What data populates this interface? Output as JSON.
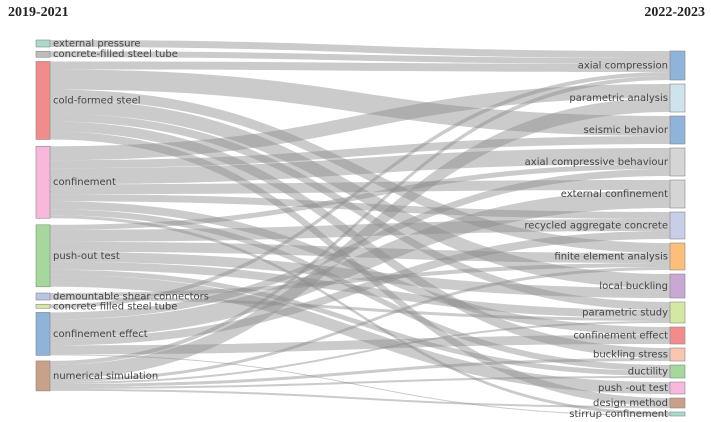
{
  "chart_data": {
    "type": "sankey",
    "left_title": "2019-2021",
    "right_title": "2022-2023",
    "left_nodes": [
      {
        "label": "external pressure",
        "color": "#a8dcc8"
      },
      {
        "label": "concrete-filled steel tube",
        "color": "#bdbdbd"
      },
      {
        "label": "cold-formed steel",
        "color": "#f28b8b"
      },
      {
        "label": "confinement",
        "color": "#f7b8dc"
      },
      {
        "label": "push-out test",
        "color": "#a6d89c"
      },
      {
        "label": "demountable shear connectors",
        "color": "#b8c4e4"
      },
      {
        "label": "concrete filled steel tube",
        "color": "#d8e8a8"
      },
      {
        "label": "confinement effect",
        "color": "#8fb4d9"
      },
      {
        "label": "numerical simulation",
        "color": "#c9a088"
      }
    ],
    "right_nodes": [
      {
        "label": "axial compression",
        "color": "#8fb4d9"
      },
      {
        "label": "parametric analysis",
        "color": "#cfe3ef"
      },
      {
        "label": "seismic behavior",
        "color": "#8fb4d9"
      },
      {
        "label": "axial compressive behaviour",
        "color": "#d5d5d5"
      },
      {
        "label": "external confinement",
        "color": "#d5d5d5"
      },
      {
        "label": "recycled aggregate concrete",
        "color": "#c8cde8"
      },
      {
        "label": "finite element analysis",
        "color": "#fbbf7a"
      },
      {
        "label": "local buckling",
        "color": "#c9a8d4"
      },
      {
        "label": "parametric study",
        "color": "#d4e8a4"
      },
      {
        "label": "confinement effect",
        "color": "#f28b8b"
      },
      {
        "label": "buckling stress",
        "color": "#fbc6b0"
      },
      {
        "label": "ductility",
        "color": "#a6d89c"
      },
      {
        "label": "push -out test",
        "color": "#f7b8dc"
      },
      {
        "label": "design method",
        "color": "#c9a088"
      },
      {
        "label": "stirrup confinement",
        "color": "#a8dcc8"
      }
    ],
    "links": [
      {
        "source": 0,
        "target": 0,
        "value": 7
      },
      {
        "source": 1,
        "target": 0,
        "value": 6
      },
      {
        "source": 2,
        "target": 0,
        "value": 8
      },
      {
        "source": 2,
        "target": 2,
        "value": 20
      },
      {
        "source": 2,
        "target": 6,
        "value": 10
      },
      {
        "source": 2,
        "target": 7,
        "value": 14
      },
      {
        "source": 2,
        "target": 8,
        "value": 8
      },
      {
        "source": 2,
        "target": 10,
        "value": 10
      },
      {
        "source": 2,
        "target": 13,
        "value": 8
      },
      {
        "source": 3,
        "target": 1,
        "value": 14
      },
      {
        "source": 3,
        "target": 2,
        "value": 8
      },
      {
        "source": 3,
        "target": 3,
        "value": 16
      },
      {
        "source": 3,
        "target": 4,
        "value": 10
      },
      {
        "source": 3,
        "target": 5,
        "value": 7
      },
      {
        "source": 3,
        "target": 9,
        "value": 8
      },
      {
        "source": 3,
        "target": 11,
        "value": 6
      },
      {
        "source": 3,
        "target": 14,
        "value": 3
      },
      {
        "source": 4,
        "target": 3,
        "value": 5
      },
      {
        "source": 4,
        "target": 5,
        "value": 12
      },
      {
        "source": 4,
        "target": 6,
        "value": 10
      },
      {
        "source": 4,
        "target": 7,
        "value": 10
      },
      {
        "source": 4,
        "target": 8,
        "value": 8
      },
      {
        "source": 4,
        "target": 11,
        "value": 5
      },
      {
        "source": 4,
        "target": 12,
        "value": 12
      },
      {
        "source": 5,
        "target": 6,
        "value": 4
      },
      {
        "source": 5,
        "target": 8,
        "value": 3
      },
      {
        "source": 6,
        "target": 0,
        "value": 4
      },
      {
        "source": 7,
        "target": 3,
        "value": 7
      },
      {
        "source": 7,
        "target": 4,
        "value": 18
      },
      {
        "source": 7,
        "target": 5,
        "value": 8
      },
      {
        "source": 7,
        "target": 9,
        "value": 9
      },
      {
        "source": 7,
        "target": 14,
        "value": 1
      },
      {
        "source": 8,
        "target": 0,
        "value": 4
      },
      {
        "source": 8,
        "target": 1,
        "value": 14
      },
      {
        "source": 8,
        "target": 6,
        "value": 3
      },
      {
        "source": 8,
        "target": 8,
        "value": 2
      },
      {
        "source": 8,
        "target": 10,
        "value": 3
      },
      {
        "source": 8,
        "target": 11,
        "value": 2
      },
      {
        "source": 8,
        "target": 13,
        "value": 2
      }
    ]
  }
}
